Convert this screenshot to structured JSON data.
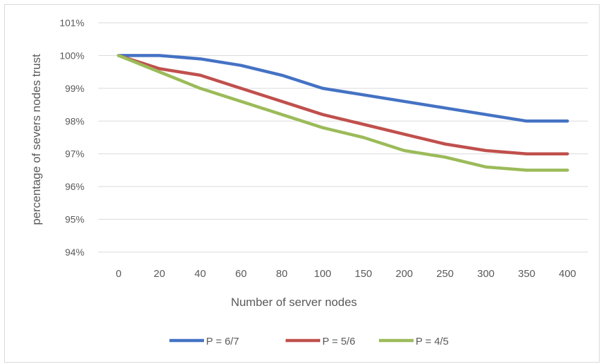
{
  "chart_data": {
    "type": "line",
    "title": "",
    "xlabel": "Number of server nodes",
    "ylabel": "percentage of severs nodes trust",
    "categories": [
      "0",
      "20",
      "40",
      "60",
      "80",
      "100",
      "150",
      "200",
      "250",
      "300",
      "350",
      "400"
    ],
    "yticks": [
      "94%",
      "95%",
      "96%",
      "97%",
      "98%",
      "99%",
      "100%",
      "101%"
    ],
    "ylim": [
      94,
      101
    ],
    "grid": true,
    "legend_position": "bottom",
    "series": [
      {
        "name": "P = 6/7",
        "color": "#4472c4",
        "values": [
          100,
          100,
          99.9,
          99.7,
          99.4,
          99.0,
          98.8,
          98.6,
          98.4,
          98.2,
          98.0,
          98.0
        ]
      },
      {
        "name": "P = 5/6",
        "color": "#c0504d",
        "values": [
          100,
          99.6,
          99.4,
          99.0,
          98.6,
          98.2,
          97.9,
          97.6,
          97.3,
          97.1,
          97.0,
          97.0
        ]
      },
      {
        "name": "P = 4/5",
        "color": "#9bbb59",
        "values": [
          100,
          99.5,
          99.0,
          98.6,
          98.2,
          97.8,
          97.5,
          97.1,
          96.9,
          96.6,
          96.5,
          96.5
        ]
      }
    ]
  }
}
